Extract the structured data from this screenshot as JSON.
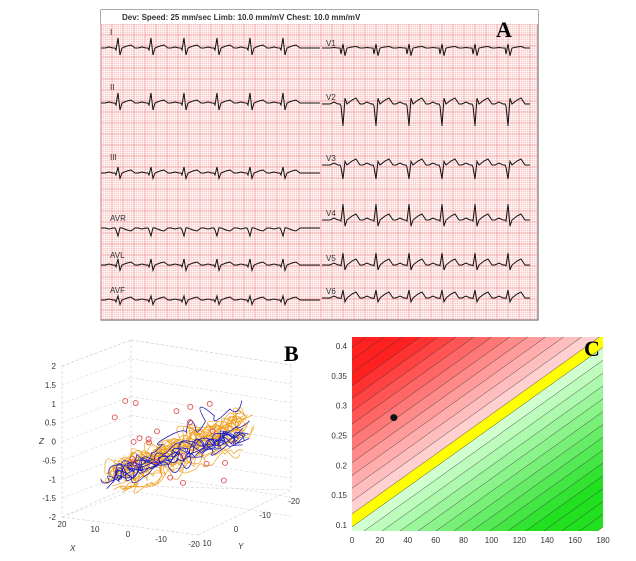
{
  "panel_a": {
    "label": "A",
    "header": "Dev:  Speed: 25 mm/sec  Limb: 10.0 mm/mV  Chest: 10.0 mm/mV",
    "grid_color": "#f08a8a",
    "limb_leads": [
      "I",
      "II",
      "III",
      "AVR",
      "AVL",
      "AVF"
    ],
    "chest_leads": [
      "V1",
      "V2",
      "V3",
      "V4",
      "V5",
      "V6"
    ]
  },
  "chart_data": [
    {
      "type": "line",
      "panel": "B",
      "label": "B",
      "projection": "3d",
      "xlabel": "X",
      "ylabel": "Y",
      "zlabel": "Z",
      "x_ticks": [
        "20",
        "10",
        "0",
        "-10",
        "-20"
      ],
      "y_ticks": [
        "10",
        "0",
        "-10",
        "-20"
      ],
      "z_ticks": [
        "2",
        "1.5",
        "1",
        "0.5",
        "0",
        "-0.5",
        "-1",
        "-1.5",
        "-2"
      ],
      "xlim": [
        -20,
        20
      ],
      "ylim": [
        -20,
        10
      ],
      "zlim": [
        -2,
        2
      ],
      "series_colors": [
        "#2020c0",
        "#f0a020"
      ],
      "marker_color": "#e04040",
      "grid": true
    },
    {
      "type": "heatmap",
      "panel": "C",
      "label": "C",
      "x_ticks": [
        "0",
        "20",
        "40",
        "60",
        "80",
        "100",
        "120",
        "140",
        "160",
        "180"
      ],
      "y_ticks": [
        "0.4",
        "0.35",
        "0.3",
        "0.25",
        "0.2",
        "0.15",
        "0.1"
      ],
      "xlim": [
        0,
        180
      ],
      "ylim": [
        0.09,
        0.415
      ],
      "threshold_band_color": "#ffff00",
      "above_color": "#ff2020",
      "below_color": "#20e020",
      "point": {
        "x": 30,
        "y": 0.28
      }
    }
  ]
}
